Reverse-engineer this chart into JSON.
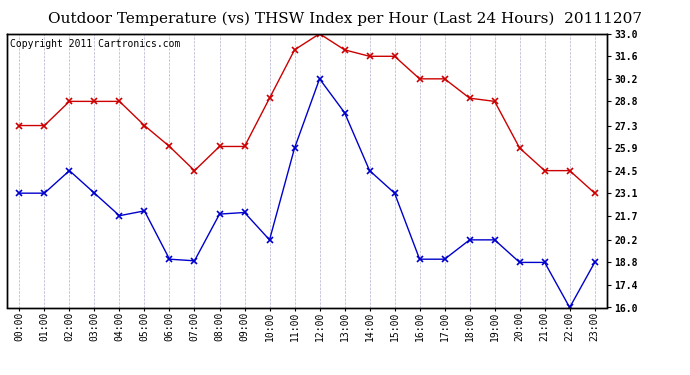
{
  "title": "Outdoor Temperature (vs) THSW Index per Hour (Last 24 Hours)  20111207",
  "copyright": "Copyright 2011 Cartronics.com",
  "x_labels": [
    "00:00",
    "01:00",
    "02:00",
    "03:00",
    "04:00",
    "05:00",
    "06:00",
    "07:00",
    "08:00",
    "09:00",
    "10:00",
    "11:00",
    "12:00",
    "13:00",
    "14:00",
    "15:00",
    "16:00",
    "17:00",
    "18:00",
    "19:00",
    "20:00",
    "21:00",
    "22:00",
    "23:00"
  ],
  "red_data": [
    27.3,
    27.3,
    28.8,
    28.8,
    28.8,
    27.3,
    26.0,
    24.5,
    26.0,
    26.0,
    29.0,
    32.0,
    33.0,
    32.0,
    31.6,
    31.6,
    30.2,
    30.2,
    29.0,
    28.8,
    25.9,
    24.5,
    24.5,
    23.1
  ],
  "blue_data": [
    23.1,
    23.1,
    24.5,
    23.1,
    21.7,
    22.0,
    19.0,
    18.9,
    21.8,
    21.9,
    20.2,
    25.9,
    30.2,
    28.1,
    24.5,
    23.1,
    19.0,
    19.0,
    20.2,
    20.2,
    18.8,
    18.8,
    16.0,
    18.8
  ],
  "ylim": [
    16.0,
    33.0
  ],
  "y_right_ticks": [
    16.0,
    17.4,
    18.8,
    20.2,
    21.7,
    23.1,
    24.5,
    25.9,
    27.3,
    28.8,
    30.2,
    31.6,
    33.0
  ],
  "red_color": "#cc0000",
  "blue_color": "#0000cc",
  "bg_color": "#ffffff",
  "grid_color": "#aaaacc",
  "title_fontsize": 11,
  "copyright_fontsize": 7
}
